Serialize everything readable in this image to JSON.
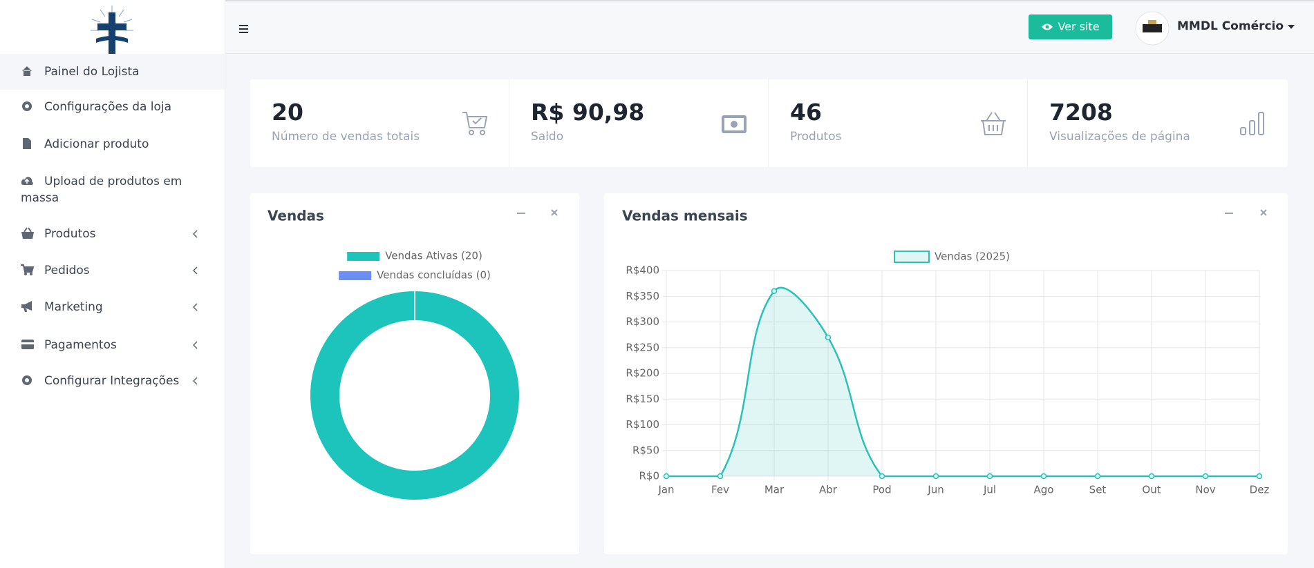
{
  "sidebar": {
    "menu": [
      "Painel do Lojista",
      "Configurações da loja",
      "Adicionar produto",
      "Upload de produtos em massa",
      "Produtos",
      "Pedidos",
      "Marketing",
      "Pagamentos",
      "Configurar Integrações"
    ]
  },
  "header": {
    "button": "Ver site",
    "user": "MMDL Comércio"
  },
  "stats": [
    {
      "value": "20",
      "label": "Número de vendas totais"
    },
    {
      "value": "R$ 90,98",
      "label": "Saldo"
    },
    {
      "value": "46",
      "label": "Produtos"
    },
    {
      "value": "7208",
      "label": "Visualizações de página"
    }
  ],
  "chart_data": [
    {
      "type": "pie",
      "title": "Vendas",
      "donut": true,
      "categories": [
        "Vendas Ativas (20)",
        "Vendas concluídas (0)"
      ],
      "values": [
        20,
        0
      ],
      "colors": [
        "#1cc4bc",
        "#6b8ef5"
      ]
    },
    {
      "type": "line",
      "title": "Vendas mensais",
      "categories": [
        "Jan",
        "Fev",
        "Mar",
        "Abr",
        "Pod",
        "Jun",
        "Jul",
        "Ago",
        "Set",
        "Out",
        "Nov",
        "Dez"
      ],
      "series": [
        {
          "name": "Vendas (2025)",
          "color": "#2bc0b8",
          "values": [
            0,
            0,
            360,
            270,
            0,
            0,
            0,
            0,
            0,
            0,
            0,
            0
          ]
        }
      ],
      "ylim": [
        0,
        400
      ],
      "yticks": [
        {
          "value": 0,
          "label": "R$0"
        },
        {
          "value": 50,
          "label": "R$50"
        },
        {
          "value": 100,
          "label": "R$100"
        },
        {
          "value": 150,
          "label": "R$150"
        },
        {
          "value": 200,
          "label": "R$200"
        },
        {
          "value": 250,
          "label": "R$250"
        },
        {
          "value": 300,
          "label": "R$300"
        },
        {
          "value": 350,
          "label": "R$350"
        },
        {
          "value": 400,
          "label": "R$400"
        }
      ],
      "grid": true,
      "fill": true,
      "smooth": true
    }
  ]
}
